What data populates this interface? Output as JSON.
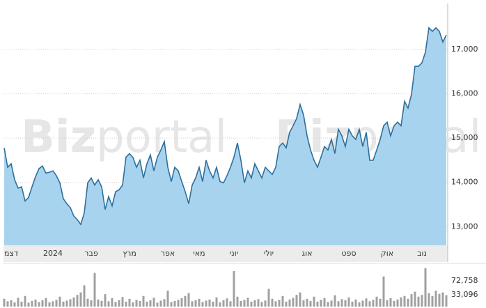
{
  "chart_data": [
    {
      "type": "area",
      "watermark": [
        "Biz",
        "portal"
      ],
      "categories": [
        null,
        null,
        "דצמ",
        null,
        null,
        null,
        null,
        null,
        null,
        null,
        null,
        null,
        null,
        null,
        "2024",
        null,
        null,
        null,
        null,
        null,
        null,
        null,
        null,
        null,
        null,
        "פבר",
        null,
        null,
        null,
        null,
        null,
        null,
        null,
        null,
        null,
        null,
        "מרץ",
        null,
        null,
        null,
        null,
        null,
        null,
        null,
        null,
        null,
        null,
        "אפר",
        null,
        null,
        null,
        null,
        null,
        null,
        null,
        null,
        "מאי",
        null,
        null,
        null,
        null,
        null,
        null,
        null,
        null,
        null,
        "יוני",
        null,
        null,
        null,
        null,
        null,
        null,
        null,
        null,
        null,
        "יולי",
        null,
        null,
        null,
        null,
        null,
        null,
        null,
        null,
        null,
        null,
        "אוג",
        null,
        null,
        null,
        null,
        null,
        null,
        null,
        null,
        null,
        null,
        null,
        "ספט",
        null,
        null,
        null,
        null,
        null,
        null,
        null,
        null,
        null,
        null,
        "אוק",
        null,
        null,
        null,
        null,
        null,
        null,
        null,
        null,
        null,
        "נוב",
        null,
        null,
        null,
        null,
        null,
        null,
        null
      ],
      "values": [
        14780,
        14340,
        14420,
        14060,
        13870,
        13900,
        13580,
        13660,
        13900,
        14130,
        14310,
        14370,
        14210,
        14230,
        14260,
        14150,
        13990,
        13630,
        13520,
        13430,
        13240,
        13160,
        13050,
        13310,
        13990,
        14100,
        13940,
        14060,
        13900,
        13390,
        13680,
        13470,
        13790,
        13830,
        13940,
        14570,
        14650,
        14560,
        14340,
        14500,
        14100,
        14420,
        14620,
        14260,
        14570,
        14730,
        14920,
        14340,
        14020,
        14340,
        14260,
        14020,
        13790,
        13520,
        13940,
        14100,
        14340,
        14020,
        14500,
        14260,
        14100,
        14340,
        14020,
        13990,
        14150,
        14340,
        14570,
        14890,
        14500,
        13990,
        14260,
        14100,
        14420,
        14260,
        14100,
        14340,
        14260,
        14180,
        14340,
        14810,
        14890,
        14780,
        15130,
        15280,
        15440,
        15760,
        15520,
        15050,
        14730,
        14500,
        14340,
        14570,
        14810,
        14730,
        14970,
        14650,
        15200,
        15050,
        14810,
        15200,
        15050,
        14970,
        15200,
        14810,
        15130,
        14500,
        14500,
        14730,
        14970,
        15280,
        15360,
        15050,
        15280,
        15360,
        15280,
        15830,
        15680,
        15990,
        16620,
        16620,
        16700,
        16940,
        17490,
        17410,
        17490,
        17410,
        17170,
        17330
      ],
      "color": "#2d6f9b",
      "fill": "#a8d3ef",
      "ylim": [
        12580,
        18000
      ],
      "yticks": [
        {
          "value": 13000,
          "label": "13,000"
        },
        {
          "value": 14000,
          "label": "14,000"
        },
        {
          "value": 15000,
          "label": "15,000"
        },
        {
          "value": 16000,
          "label": "16,000"
        },
        {
          "value": 17000,
          "label": "17,000"
        }
      ],
      "grid": true
    },
    {
      "type": "bar",
      "values": [
        22000,
        15000,
        18000,
        12000,
        25000,
        14000,
        30000,
        11000,
        16000,
        20000,
        13000,
        18000,
        24000,
        12000,
        15000,
        19000,
        28000,
        14000,
        17000,
        21000,
        26000,
        33000,
        40000,
        60000,
        22000,
        18000,
        95000,
        20000,
        16000,
        35000,
        15000,
        24000,
        13000,
        18000,
        27000,
        14000,
        22000,
        12000,
        19000,
        16000,
        30000,
        14000,
        18000,
        25000,
        11000,
        17000,
        21000,
        45000,
        13000,
        16000,
        19000,
        24000,
        30000,
        38000,
        15000,
        18000,
        22000,
        13000,
        17000,
        20000,
        14000,
        26000,
        12000,
        18000,
        23000,
        15000,
        100000,
        28000,
        16000,
        19000,
        25000,
        14000,
        18000,
        21000,
        13000,
        17000,
        50000,
        22000,
        15000,
        19000,
        30000,
        14000,
        20000,
        25000,
        33000,
        40000,
        18000,
        22000,
        16000,
        28000,
        14000,
        19000,
        24000,
        13000,
        17000,
        32000,
        15000,
        21000,
        18000,
        26000,
        14000,
        20000,
        12000,
        17000,
        23000,
        15000,
        19000,
        28000,
        22000,
        85000,
        18000,
        24000,
        16000,
        20000,
        26000,
        30000,
        22000,
        35000,
        42000,
        28000,
        33000,
        108000,
        38000,
        30000,
        45000,
        36000,
        40000,
        32000
      ],
      "color": "#a0a0a0",
      "ylim": [
        0,
        110000
      ],
      "yticks": [
        {
          "value": 72758,
          "label": "72,758"
        },
        {
          "value": 33096,
          "label": "33,096"
        }
      ]
    }
  ]
}
